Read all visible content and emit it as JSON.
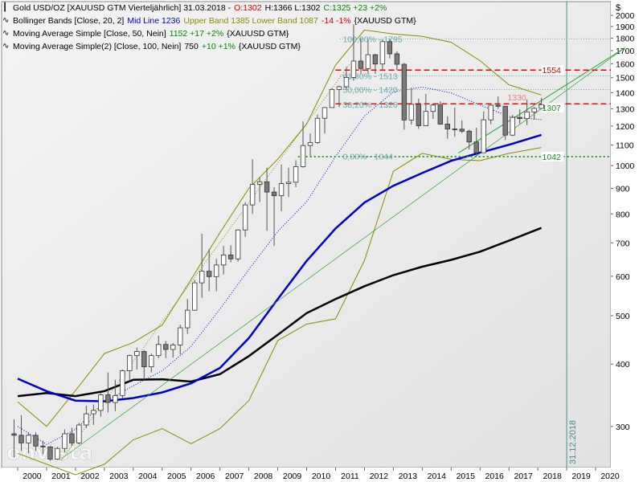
{
  "legend": [
    {
      "icon": "candle-legend-icon",
      "parts": [
        {
          "text": "Gold USD/OZ [XAUUSD GTM  Vierteljährlich] 31.03.2018 -",
          "color": "#000000"
        },
        {
          "text": "O:1302",
          "color": "#d40000"
        },
        {
          "text": "H:1366  L:1302",
          "color": "#000000"
        },
        {
          "text": "C:1325 +23 +2%",
          "color": "#008800"
        }
      ]
    },
    {
      "icon": "curve-legend-icon",
      "parts": [
        {
          "text": "Bollinger Bands [Close, 20, 2]",
          "color": "#000000"
        },
        {
          "text": "Mid Line 1236",
          "color": "#0000cc"
        },
        {
          "text": "Upper Band 1385 Lower Band 1087",
          "color": "#8b8b00"
        },
        {
          "text": "-14 -1%",
          "color": "#d40000"
        },
        {
          "text": "{XAUUSD GTM}",
          "color": "#000000"
        }
      ]
    },
    {
      "icon": "curve-legend-icon",
      "parts": [
        {
          "text": "Moving Average Simple [Close, 50, Nein]",
          "color": "#000000"
        },
        {
          "text": "1152 +17 +2%",
          "color": "#008800"
        },
        {
          "text": "{XAUUSD GTM}",
          "color": "#000000"
        }
      ]
    },
    {
      "icon": "curve-legend-icon",
      "parts": [
        {
          "text": "Moving Average Simple(2) [Close, 100, Nein]",
          "color": "#000000"
        },
        {
          "text": "750",
          "color": "#000000"
        },
        {
          "text": "+10 +1%",
          "color": "#008800"
        },
        {
          "text": "{XAUUSD GTM}",
          "color": "#000000"
        }
      ]
    }
  ],
  "currency_symbol": "$",
  "watermark": "onvista",
  "chart_data": {
    "type": "candlestick",
    "y_scale": "log",
    "ylim": [
      250,
      2100
    ],
    "y_ticks": [
      300,
      400,
      500,
      600,
      700,
      800,
      900,
      1000,
      1100,
      1200,
      1300,
      1400,
      1500,
      1600,
      1700,
      1800,
      1900,
      2000
    ],
    "x_tick_labels": [
      "2000",
      "2001",
      "2002",
      "2003",
      "2004",
      "2005",
      "2006",
      "2007",
      "2008",
      "2009",
      "2010",
      "2011",
      "2012",
      "2013",
      "2014",
      "2015",
      "2016",
      "2017",
      "2018",
      "2019",
      "2020"
    ],
    "x_range": [
      2000,
      2021
    ],
    "marker_line_label": "31.12.2018",
    "marker_line_x": 2019.0,
    "candles": [
      {
        "t": 1999.875,
        "o": 290,
        "h": 310,
        "l": 260,
        "c": 288
      },
      {
        "t": 2000.125,
        "o": 288,
        "h": 316,
        "l": 268,
        "c": 278
      },
      {
        "t": 2000.375,
        "o": 278,
        "h": 292,
        "l": 265,
        "c": 288
      },
      {
        "t": 2000.625,
        "o": 288,
        "h": 292,
        "l": 268,
        "c": 274
      },
      {
        "t": 2000.875,
        "o": 274,
        "h": 281,
        "l": 264,
        "c": 273
      },
      {
        "t": 2001.125,
        "o": 273,
        "h": 274,
        "l": 256,
        "c": 258
      },
      {
        "t": 2001.375,
        "o": 258,
        "h": 273,
        "l": 257,
        "c": 271
      },
      {
        "t": 2001.625,
        "o": 271,
        "h": 296,
        "l": 266,
        "c": 290
      },
      {
        "t": 2001.875,
        "o": 290,
        "h": 298,
        "l": 274,
        "c": 278
      },
      {
        "t": 2002.125,
        "o": 278,
        "h": 305,
        "l": 276,
        "c": 302
      },
      {
        "t": 2002.375,
        "o": 302,
        "h": 330,
        "l": 298,
        "c": 318
      },
      {
        "t": 2002.625,
        "o": 318,
        "h": 332,
        "l": 302,
        "c": 323
      },
      {
        "t": 2002.875,
        "o": 323,
        "h": 350,
        "l": 314,
        "c": 347
      },
      {
        "t": 2003.125,
        "o": 347,
        "h": 385,
        "l": 320,
        "c": 335
      },
      {
        "t": 2003.375,
        "o": 335,
        "h": 372,
        "l": 322,
        "c": 346
      },
      {
        "t": 2003.625,
        "o": 346,
        "h": 390,
        "l": 342,
        "c": 388
      },
      {
        "t": 2003.875,
        "o": 388,
        "h": 418,
        "l": 370,
        "c": 416
      },
      {
        "t": 2004.125,
        "o": 416,
        "h": 432,
        "l": 390,
        "c": 424
      },
      {
        "t": 2004.375,
        "o": 424,
        "h": 427,
        "l": 372,
        "c": 395
      },
      {
        "t": 2004.625,
        "o": 395,
        "h": 420,
        "l": 385,
        "c": 416
      },
      {
        "t": 2004.875,
        "o": 416,
        "h": 456,
        "l": 411,
        "c": 438
      },
      {
        "t": 2005.125,
        "o": 438,
        "h": 445,
        "l": 411,
        "c": 428
      },
      {
        "t": 2005.375,
        "o": 428,
        "h": 441,
        "l": 412,
        "c": 437
      },
      {
        "t": 2005.625,
        "o": 437,
        "h": 480,
        "l": 418,
        "c": 473
      },
      {
        "t": 2005.875,
        "o": 473,
        "h": 540,
        "l": 460,
        "c": 513
      },
      {
        "t": 2006.125,
        "o": 513,
        "h": 590,
        "l": 512,
        "c": 582
      },
      {
        "t": 2006.375,
        "o": 582,
        "h": 730,
        "l": 543,
        "c": 614
      },
      {
        "t": 2006.625,
        "o": 614,
        "h": 680,
        "l": 560,
        "c": 599
      },
      {
        "t": 2006.875,
        "o": 599,
        "h": 650,
        "l": 560,
        "c": 632
      },
      {
        "t": 2007.125,
        "o": 632,
        "h": 690,
        "l": 605,
        "c": 662
      },
      {
        "t": 2007.375,
        "o": 662,
        "h": 692,
        "l": 640,
        "c": 650
      },
      {
        "t": 2007.625,
        "o": 650,
        "h": 745,
        "l": 642,
        "c": 743
      },
      {
        "t": 2007.875,
        "o": 743,
        "h": 845,
        "l": 720,
        "c": 834
      },
      {
        "t": 2008.125,
        "o": 834,
        "h": 1030,
        "l": 800,
        "c": 917
      },
      {
        "t": 2008.375,
        "o": 917,
        "h": 945,
        "l": 845,
        "c": 928
      },
      {
        "t": 2008.625,
        "o": 928,
        "h": 990,
        "l": 740,
        "c": 885
      },
      {
        "t": 2008.875,
        "o": 885,
        "h": 905,
        "l": 690,
        "c": 870
      },
      {
        "t": 2009.125,
        "o": 870,
        "h": 1005,
        "l": 810,
        "c": 920
      },
      {
        "t": 2009.375,
        "o": 920,
        "h": 990,
        "l": 865,
        "c": 926
      },
      {
        "t": 2009.625,
        "o": 926,
        "h": 1025,
        "l": 905,
        "c": 995
      },
      {
        "t": 2009.875,
        "o": 995,
        "h": 1226,
        "l": 990,
        "c": 1097
      },
      {
        "t": 2010.125,
        "o": 1097,
        "h": 1160,
        "l": 1045,
        "c": 1112
      },
      {
        "t": 2010.375,
        "o": 1112,
        "h": 1265,
        "l": 1105,
        "c": 1244
      },
      {
        "t": 2010.625,
        "o": 1244,
        "h": 1310,
        "l": 1160,
        "c": 1307
      },
      {
        "t": 2010.875,
        "o": 1307,
        "h": 1431,
        "l": 1310,
        "c": 1421
      },
      {
        "t": 2011.125,
        "o": 1421,
        "h": 1447,
        "l": 1310,
        "c": 1439
      },
      {
        "t": 2011.375,
        "o": 1439,
        "h": 1577,
        "l": 1420,
        "c": 1502
      },
      {
        "t": 2011.625,
        "o": 1502,
        "h": 1920,
        "l": 1480,
        "c": 1620
      },
      {
        "t": 2011.875,
        "o": 1620,
        "h": 1800,
        "l": 1530,
        "c": 1565
      },
      {
        "t": 2012.125,
        "o": 1565,
        "h": 1790,
        "l": 1525,
        "c": 1668
      },
      {
        "t": 2012.375,
        "o": 1668,
        "h": 1675,
        "l": 1527,
        "c": 1598
      },
      {
        "t": 2012.625,
        "o": 1598,
        "h": 1790,
        "l": 1560,
        "c": 1772
      },
      {
        "t": 2012.875,
        "o": 1772,
        "h": 1796,
        "l": 1640,
        "c": 1675
      },
      {
        "t": 2013.125,
        "o": 1675,
        "h": 1695,
        "l": 1555,
        "c": 1596
      },
      {
        "t": 2013.375,
        "o": 1596,
        "h": 1605,
        "l": 1180,
        "c": 1234
      },
      {
        "t": 2013.625,
        "o": 1234,
        "h": 1433,
        "l": 1208,
        "c": 1327
      },
      {
        "t": 2013.875,
        "o": 1327,
        "h": 1362,
        "l": 1185,
        "c": 1202
      },
      {
        "t": 2014.125,
        "o": 1202,
        "h": 1392,
        "l": 1200,
        "c": 1284
      },
      {
        "t": 2014.375,
        "o": 1284,
        "h": 1332,
        "l": 1240,
        "c": 1322
      },
      {
        "t": 2014.625,
        "o": 1322,
        "h": 1345,
        "l": 1208,
        "c": 1211
      },
      {
        "t": 2014.875,
        "o": 1211,
        "h": 1255,
        "l": 1132,
        "c": 1184
      },
      {
        "t": 2015.125,
        "o": 1184,
        "h": 1307,
        "l": 1142,
        "c": 1183
      },
      {
        "t": 2015.375,
        "o": 1183,
        "h": 1232,
        "l": 1162,
        "c": 1172
      },
      {
        "t": 2015.625,
        "o": 1172,
        "h": 1180,
        "l": 1077,
        "c": 1115
      },
      {
        "t": 2015.875,
        "o": 1115,
        "h": 1191,
        "l": 1046,
        "c": 1061
      },
      {
        "t": 2016.125,
        "o": 1061,
        "h": 1284,
        "l": 1061,
        "c": 1235
      },
      {
        "t": 2016.375,
        "o": 1235,
        "h": 1320,
        "l": 1210,
        "c": 1321
      },
      {
        "t": 2016.625,
        "o": 1321,
        "h": 1375,
        "l": 1300,
        "c": 1315
      },
      {
        "t": 2016.875,
        "o": 1315,
        "h": 1315,
        "l": 1125,
        "c": 1151
      },
      {
        "t": 2017.125,
        "o": 1151,
        "h": 1263,
        "l": 1146,
        "c": 1249
      },
      {
        "t": 2017.375,
        "o": 1249,
        "h": 1296,
        "l": 1214,
        "c": 1242
      },
      {
        "t": 2017.625,
        "o": 1242,
        "h": 1357,
        "l": 1205,
        "c": 1281
      },
      {
        "t": 2017.875,
        "o": 1281,
        "h": 1310,
        "l": 1236,
        "c": 1302
      },
      {
        "t": 2018.125,
        "o": 1302,
        "h": 1366,
        "l": 1302,
        "c": 1325
      }
    ],
    "horizontal_levels": [
      {
        "value": 1795,
        "label": "100,00% - 1795",
        "style": "dotted",
        "color": "#6aa8a8",
        "label_color": "#6aa8a8",
        "label_at": 2011.25
      },
      {
        "value": 1554,
        "label": "1554",
        "style": "dashed",
        "color": "#ee0000",
        "label_color": "#d40000",
        "label_at": 2018.15,
        "label_bg": "#ffffff"
      },
      {
        "value": 1513,
        "label": "61,80% - 1513",
        "style": "dotted",
        "color": "#6aa8a8",
        "label_color": "#6aa8a8",
        "label_at": 2011.25
      },
      {
        "value": 1420,
        "label": "50,00% - 1420",
        "style": "dotted",
        "color": "#6aa8a8",
        "label_color": "#6aa8a8",
        "label_at": 2011.25
      },
      {
        "value": 1330,
        "label": "1330",
        "style": "dashed",
        "color": "#ee0000",
        "label_color": "#ee7a7a",
        "label_at": 2016.95,
        "label_above": true
      },
      {
        "value": 1326,
        "label": "38,20% - 1326",
        "style": "dotted",
        "color": "#6aa8a8",
        "label_color": "#6aa8a8",
        "label_at": 2011.25
      },
      {
        "value": 1042,
        "label": "1042",
        "style": "dotted-green",
        "color": "#2ea02e",
        "label_color": "#1f8a1f",
        "label_at": 2018.15,
        "label_bg": "#ffffff"
      },
      {
        "value": 1044,
        "label": "0,00% - 1044",
        "style": "none",
        "color": "#6aa8a8",
        "label_color": "#6aa8a8",
        "label_at": 2011.25
      }
    ],
    "price_callout": {
      "value": 1307,
      "label": "1307",
      "color": "#1f8a1f",
      "label_at": 2018.15
    },
    "sma_100": [
      {
        "t": 2000.0,
        "v": 345
      },
      {
        "t": 2001.0,
        "v": 350
      },
      {
        "t": 2002.0,
        "v": 345
      },
      {
        "t": 2003.0,
        "v": 353
      },
      {
        "t": 2004.0,
        "v": 372
      },
      {
        "t": 2005.0,
        "v": 373
      },
      {
        "t": 2006.0,
        "v": 369
      },
      {
        "t": 2007.0,
        "v": 382
      },
      {
        "t": 2008.0,
        "v": 415
      },
      {
        "t": 2009.0,
        "v": 458
      },
      {
        "t": 2010.0,
        "v": 506
      },
      {
        "t": 2011.0,
        "v": 540
      },
      {
        "t": 2012.0,
        "v": 573
      },
      {
        "t": 2013.0,
        "v": 603
      },
      {
        "t": 2014.0,
        "v": 627
      },
      {
        "t": 2015.0,
        "v": 647
      },
      {
        "t": 2016.0,
        "v": 672
      },
      {
        "t": 2017.0,
        "v": 707
      },
      {
        "t": 2018.125,
        "v": 750
      }
    ],
    "sma_50": [
      {
        "t": 2000.0,
        "v": 374
      },
      {
        "t": 2001.0,
        "v": 353
      },
      {
        "t": 2002.0,
        "v": 338
      },
      {
        "t": 2003.0,
        "v": 337
      },
      {
        "t": 2004.0,
        "v": 342
      },
      {
        "t": 2005.0,
        "v": 351
      },
      {
        "t": 2006.0,
        "v": 366
      },
      {
        "t": 2007.0,
        "v": 393
      },
      {
        "t": 2008.0,
        "v": 451
      },
      {
        "t": 2009.0,
        "v": 540
      },
      {
        "t": 2010.0,
        "v": 644
      },
      {
        "t": 2011.0,
        "v": 748
      },
      {
        "t": 2012.0,
        "v": 843
      },
      {
        "t": 2013.0,
        "v": 911
      },
      {
        "t": 2014.0,
        "v": 966
      },
      {
        "t": 2015.0,
        "v": 1022
      },
      {
        "t": 2016.0,
        "v": 1061
      },
      {
        "t": 2017.0,
        "v": 1101
      },
      {
        "t": 2018.125,
        "v": 1152
      }
    ],
    "bollinger_mid": [
      {
        "t": 2000.0,
        "v": 300
      },
      {
        "t": 2001.0,
        "v": 276
      },
      {
        "t": 2002.0,
        "v": 296
      },
      {
        "t": 2003.0,
        "v": 336
      },
      {
        "t": 2004.0,
        "v": 362
      },
      {
        "t": 2005.0,
        "v": 388
      },
      {
        "t": 2006.0,
        "v": 434
      },
      {
        "t": 2007.0,
        "v": 516
      },
      {
        "t": 2008.0,
        "v": 619
      },
      {
        "t": 2009.0,
        "v": 738
      },
      {
        "t": 2010.0,
        "v": 846
      },
      {
        "t": 2011.0,
        "v": 1042
      },
      {
        "t": 2012.0,
        "v": 1257
      },
      {
        "t": 2013.0,
        "v": 1405
      },
      {
        "t": 2014.0,
        "v": 1437
      },
      {
        "t": 2015.0,
        "v": 1398
      },
      {
        "t": 2016.0,
        "v": 1323
      },
      {
        "t": 2017.0,
        "v": 1255
      },
      {
        "t": 2018.125,
        "v": 1236
      }
    ],
    "bollinger_upper": [
      {
        "t": 2000.0,
        "v": 336
      },
      {
        "t": 2001.0,
        "v": 300
      },
      {
        "t": 2002.0,
        "v": 354
      },
      {
        "t": 2003.0,
        "v": 420
      },
      {
        "t": 2004.0,
        "v": 442
      },
      {
        "t": 2005.0,
        "v": 479
      },
      {
        "t": 2006.0,
        "v": 591
      },
      {
        "t": 2007.0,
        "v": 734
      },
      {
        "t": 2008.0,
        "v": 900
      },
      {
        "t": 2009.0,
        "v": 1030
      },
      {
        "t": 2010.0,
        "v": 1211
      },
      {
        "t": 2011.0,
        "v": 1590
      },
      {
        "t": 2012.0,
        "v": 1869
      },
      {
        "t": 2013.0,
        "v": 1836
      },
      {
        "t": 2014.0,
        "v": 1816
      },
      {
        "t": 2015.0,
        "v": 1767
      },
      {
        "t": 2016.0,
        "v": 1623
      },
      {
        "t": 2017.0,
        "v": 1452
      },
      {
        "t": 2018.125,
        "v": 1385
      }
    ],
    "bollinger_lower": [
      {
        "t": 2000.0,
        "v": 265
      },
      {
        "t": 2001.0,
        "v": 252
      },
      {
        "t": 2002.0,
        "v": 240
      },
      {
        "t": 2003.0,
        "v": 252
      },
      {
        "t": 2004.0,
        "v": 282
      },
      {
        "t": 2005.0,
        "v": 297
      },
      {
        "t": 2006.0,
        "v": 277
      },
      {
        "t": 2007.0,
        "v": 297
      },
      {
        "t": 2008.0,
        "v": 338
      },
      {
        "t": 2009.0,
        "v": 446
      },
      {
        "t": 2010.0,
        "v": 481
      },
      {
        "t": 2011.0,
        "v": 493
      },
      {
        "t": 2012.0,
        "v": 645
      },
      {
        "t": 2013.0,
        "v": 974
      },
      {
        "t": 2014.0,
        "v": 1058
      },
      {
        "t": 2015.0,
        "v": 1029
      },
      {
        "t": 2016.0,
        "v": 1023
      },
      {
        "t": 2017.0,
        "v": 1058
      },
      {
        "t": 2018.125,
        "v": 1087
      }
    ],
    "trendlines": [
      {
        "from": {
          "t": 2001.5,
          "v": 258
        },
        "to": {
          "t": 2021.0,
          "v": 1720
        },
        "color": "#2ea02e",
        "style": "solid-thin"
      },
      {
        "from": {
          "t": 2001.5,
          "v": 256
        },
        "to": {
          "t": 2011.5,
          "v": 1600
        },
        "color": "#8b8b00",
        "style": "dotted"
      },
      {
        "from": {
          "t": 2015.25,
          "v": 1060
        },
        "to": {
          "t": 2021.0,
          "v": 1720
        },
        "color": "#2ea02e",
        "style": "solid"
      }
    ]
  }
}
